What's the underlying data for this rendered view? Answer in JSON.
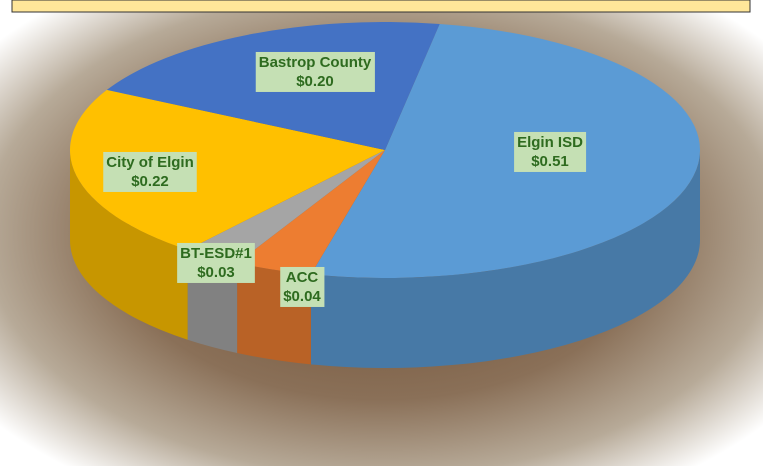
{
  "chart_data": {
    "type": "pie",
    "categories": [
      "Elgin ISD",
      "ACC",
      "BT-ESD#1",
      "City of Elgin",
      "Bastrop County"
    ],
    "values": [
      0.51,
      0.04,
      0.03,
      0.22,
      0.2
    ],
    "value_labels": [
      "$0.51",
      "$0.04",
      "$0.03",
      "$0.22",
      "$0.20"
    ],
    "colors": [
      "#5b9bd5",
      "#ed7d31",
      "#a5a5a5",
      "#ffc000",
      "#4472c4"
    ]
  }
}
